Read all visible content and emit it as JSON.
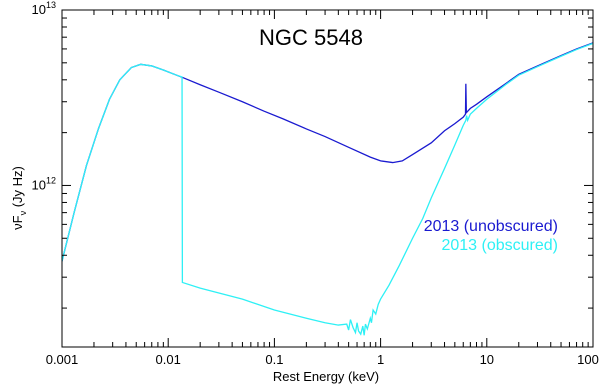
{
  "chart_data": {
    "type": "line",
    "title": "NGC 5548",
    "xlabel": "Rest Energy (keV)",
    "ylabel_main": "νF",
    "ylabel_sub": "ν",
    "ylabel_unit": " (Jy Hz)",
    "x_scale": "log",
    "y_scale": "log",
    "xlim": [
      0.001,
      100
    ],
    "ylim": [
      120000000000.0,
      10000000000000.0
    ],
    "x_ticks": [
      {
        "value": 0.001,
        "label": "0.001"
      },
      {
        "value": 0.01,
        "label": "0.01"
      },
      {
        "value": 0.1,
        "label": "0.1"
      },
      {
        "value": 1,
        "label": "1"
      },
      {
        "value": 10,
        "label": "10"
      },
      {
        "value": 100,
        "label": "100"
      }
    ],
    "y_ticks": [
      {
        "value": 1000000000000.0,
        "label_base": "10",
        "label_exp": "12"
      },
      {
        "value": 10000000000000.0,
        "label_base": "10",
        "label_exp": "13"
      }
    ],
    "legend_position": "right",
    "series": [
      {
        "name": "2013 (unobscured)",
        "color": "#1a1ad0",
        "points": [
          [
            0.001,
            370000000000.0
          ],
          [
            0.0013,
            700000000000.0
          ],
          [
            0.0017,
            1300000000000.0
          ],
          [
            0.0022,
            2100000000000.0
          ],
          [
            0.0028,
            3100000000000.0
          ],
          [
            0.0035,
            4000000000000.0
          ],
          [
            0.0045,
            4700000000000.0
          ],
          [
            0.0055,
            4900000000000.0
          ],
          [
            0.007,
            4800000000000.0
          ],
          [
            0.009,
            4550000000000.0
          ],
          [
            0.012,
            4250000000000.0
          ],
          [
            0.014,
            4100000000000.0
          ],
          [
            0.02,
            3750000000000.0
          ],
          [
            0.03,
            3400000000000.0
          ],
          [
            0.05,
            3000000000000.0
          ],
          [
            0.08,
            2650000000000.0
          ],
          [
            0.12,
            2400000000000.0
          ],
          [
            0.2,
            2100000000000.0
          ],
          [
            0.3,
            1900000000000.0
          ],
          [
            0.5,
            1650000000000.0
          ],
          [
            0.8,
            1450000000000.0
          ],
          [
            1.0,
            1380000000000.0
          ],
          [
            1.3,
            1350000000000.0
          ],
          [
            1.6,
            1380000000000.0
          ],
          [
            2.0,
            1500000000000.0
          ],
          [
            3.0,
            1750000000000.0
          ],
          [
            4.0,
            2050000000000.0
          ],
          [
            5.0,
            2250000000000.0
          ],
          [
            6.0,
            2450000000000.0
          ],
          [
            6.3,
            2550000000000.0
          ],
          [
            6.35,
            3800000000000.0
          ],
          [
            6.42,
            2600000000000.0
          ],
          [
            7.0,
            2750000000000.0
          ],
          [
            8.0,
            2900000000000.0
          ],
          [
            10,
            3200000000000.0
          ],
          [
            15,
            3800000000000.0
          ],
          [
            20,
            4300000000000.0
          ],
          [
            30,
            4800000000000.0
          ],
          [
            50,
            5500000000000.0
          ],
          [
            70,
            6000000000000.0
          ],
          [
            100,
            6500000000000.0
          ]
        ]
      },
      {
        "name": "2013 (obscured)",
        "color": "#2ef0f5",
        "points": [
          [
            0.001,
            370000000000.0
          ],
          [
            0.0013,
            700000000000.0
          ],
          [
            0.0017,
            1300000000000.0
          ],
          [
            0.0022,
            2100000000000.0
          ],
          [
            0.0028,
            3100000000000.0
          ],
          [
            0.0035,
            4000000000000.0
          ],
          [
            0.0045,
            4700000000000.0
          ],
          [
            0.0055,
            4900000000000.0
          ],
          [
            0.007,
            4800000000000.0
          ],
          [
            0.009,
            4550000000000.0
          ],
          [
            0.012,
            4250000000000.0
          ],
          [
            0.0135,
            4150000000000.0
          ],
          [
            0.0136,
            280000000000.0
          ],
          [
            0.02,
            260000000000.0
          ],
          [
            0.05,
            225000000000.0
          ],
          [
            0.1,
            195000000000.0
          ],
          [
            0.2,
            175000000000.0
          ],
          [
            0.3,
            165000000000.0
          ],
          [
            0.4,
            160000000000.0
          ],
          [
            0.48,
            162000000000.0
          ],
          [
            0.5,
            150000000000.0
          ],
          [
            0.52,
            172000000000.0
          ],
          [
            0.55,
            155000000000.0
          ],
          [
            0.58,
            145000000000.0
          ],
          [
            0.6,
            165000000000.0
          ],
          [
            0.62,
            148000000000.0
          ],
          [
            0.65,
            142000000000.0
          ],
          [
            0.68,
            158000000000.0
          ],
          [
            0.7,
            140000000000.0
          ],
          [
            0.72,
            162000000000.0
          ],
          [
            0.75,
            152000000000.0
          ],
          [
            0.8,
            175000000000.0
          ],
          [
            0.82,
            165000000000.0
          ],
          [
            0.85,
            195000000000.0
          ],
          [
            0.9,
            185000000000.0
          ],
          [
            0.95,
            210000000000.0
          ],
          [
            1.0,
            225000000000.0
          ],
          [
            1.2,
            270000000000.0
          ],
          [
            1.5,
            350000000000.0
          ],
          [
            2.0,
            500000000000.0
          ],
          [
            2.5,
            650000000000.0
          ],
          [
            3.0,
            850000000000.0
          ],
          [
            4.0,
            1250000000000.0
          ],
          [
            5.0,
            1700000000000.0
          ],
          [
            6.0,
            2200000000000.0
          ],
          [
            6.35,
            2350000000000.0
          ],
          [
            6.45,
            2500000000000.0
          ],
          [
            6.6,
            2350000000000.0
          ],
          [
            7.0,
            2550000000000.0
          ],
          [
            8.0,
            2750000000000.0
          ],
          [
            10,
            3100000000000.0
          ],
          [
            15,
            3750000000000.0
          ],
          [
            20,
            4250000000000.0
          ],
          [
            30,
            4750000000000.0
          ],
          [
            50,
            5450000000000.0
          ],
          [
            70,
            5950000000000.0
          ],
          [
            100,
            6450000000000.0
          ]
        ]
      }
    ]
  }
}
